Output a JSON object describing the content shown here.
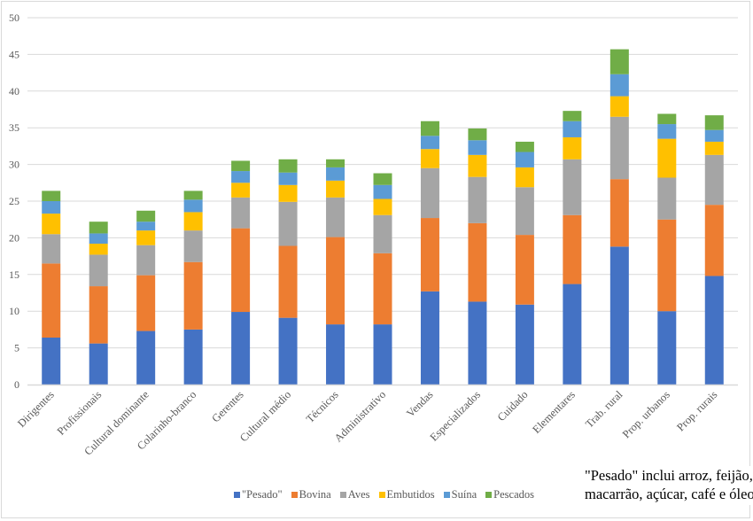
{
  "chart_data": {
    "type": "bar",
    "stacked": true,
    "title": "",
    "xlabel": "",
    "ylabel": "",
    "ylim": [
      0,
      50
    ],
    "yticks": [
      0,
      5,
      10,
      15,
      20,
      25,
      30,
      35,
      40,
      45,
      50
    ],
    "grid": true,
    "legend_position": "bottom",
    "categories": [
      "Dirigentes",
      "Profissionais",
      "Cultural dominante",
      "Colarinho-branco",
      "Gerentes",
      "Cultural médio",
      "Técnicos",
      "Administrativo",
      "Vendas",
      "Especializados",
      "Cuidado",
      "Elementares",
      "Trab. rural",
      "Prop. urbanos",
      "Prop. rurais"
    ],
    "series": [
      {
        "name": "\"Pesado\"",
        "color": "#4472c4",
        "values": [
          6.4,
          5.6,
          7.3,
          7.5,
          9.9,
          9.1,
          8.2,
          8.2,
          12.7,
          11.3,
          10.9,
          13.7,
          18.8,
          10.0,
          14.8
        ]
      },
      {
        "name": "Bovina",
        "color": "#ed7d31",
        "values": [
          10.1,
          7.8,
          7.6,
          9.2,
          11.4,
          9.8,
          11.9,
          9.7,
          10.0,
          10.7,
          9.5,
          9.4,
          9.2,
          12.5,
          9.7
        ]
      },
      {
        "name": "Aves",
        "color": "#a5a5a5",
        "values": [
          4.0,
          4.3,
          4.1,
          4.3,
          4.2,
          6.0,
          5.4,
          5.2,
          6.8,
          6.3,
          6.5,
          7.6,
          8.5,
          5.7,
          6.8
        ]
      },
      {
        "name": "Embutidos",
        "color": "#ffc000",
        "values": [
          2.8,
          1.5,
          2.0,
          2.5,
          2.0,
          2.3,
          2.3,
          2.2,
          2.6,
          3.0,
          2.7,
          3.0,
          2.8,
          5.3,
          1.8
        ]
      },
      {
        "name": "Suína",
        "color": "#5b9bd5",
        "values": [
          1.7,
          1.4,
          1.2,
          1.7,
          1.6,
          1.7,
          1.8,
          1.9,
          1.8,
          2.0,
          2.1,
          2.2,
          3.0,
          2.0,
          1.6
        ]
      },
      {
        "name": "Pescados",
        "color": "#70ad47",
        "values": [
          1.4,
          1.6,
          1.5,
          1.2,
          1.4,
          1.8,
          1.1,
          1.6,
          2.0,
          1.6,
          1.4,
          1.4,
          3.4,
          1.4,
          2.0
        ]
      }
    ],
    "annotations": [
      "\"Pesado\" inclui arroz, feijão,",
      "macarrão, açúcar, café e óleo."
    ]
  },
  "note": {
    "line1": "\"Pesado\" inclui arroz, feijão,",
    "line2": "macarrão, açúcar, café e óleo."
  },
  "legend": [
    {
      "label": "\"Pesado\"",
      "color": "#4472c4"
    },
    {
      "label": "Bovina",
      "color": "#ed7d31"
    },
    {
      "label": "Aves",
      "color": "#a5a5a5"
    },
    {
      "label": "Embutidos",
      "color": "#ffc000"
    },
    {
      "label": "Suína",
      "color": "#5b9bd5"
    },
    {
      "label": "Pescados",
      "color": "#70ad47"
    }
  ]
}
